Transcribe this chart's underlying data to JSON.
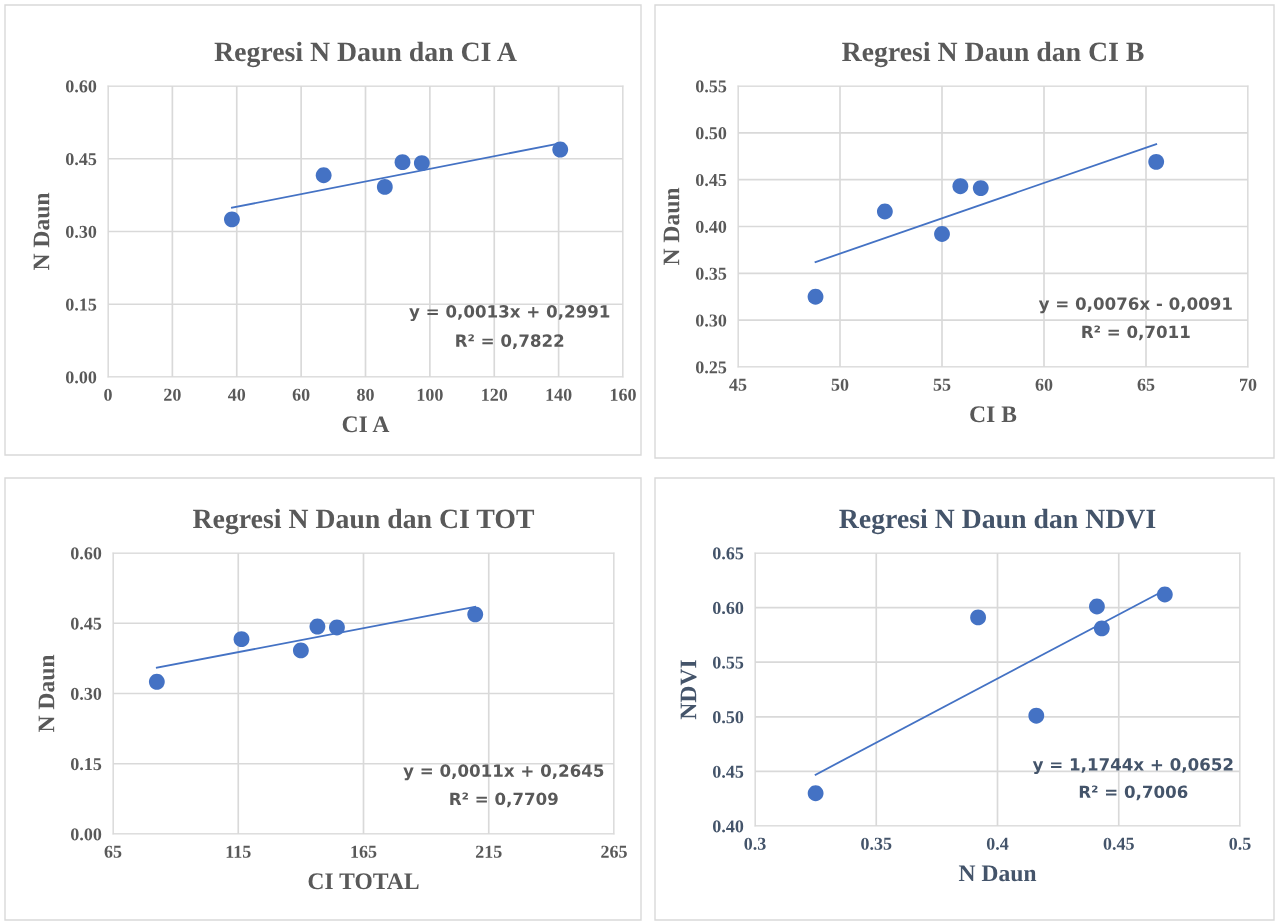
{
  "chart_data": [
    {
      "type": "scatter",
      "title": "Regresi N Daun dan CI A",
      "xlabel": "CI A",
      "ylabel": "N Daun",
      "grid": true,
      "xlim": [
        0,
        160
      ],
      "xticks": [
        0,
        20,
        40,
        60,
        80,
        100,
        120,
        140,
        160
      ],
      "ylim": [
        0,
        0.6
      ],
      "yticks": [
        {
          "value": 0,
          "label": "0.00"
        },
        {
          "value": 0.15,
          "label": "0.15"
        },
        {
          "value": 0.3,
          "label": "0.30"
        },
        {
          "value": 0.45,
          "label": "0.45"
        },
        {
          "value": 0.6,
          "label": "0.60"
        }
      ],
      "series": [
        {
          "marker": "circle",
          "color": "#4472c4",
          "x": [
            38.5,
            67,
            86,
            91.5,
            97.5,
            140.5
          ],
          "values": [
            0.325,
            0.416,
            0.392,
            0.443,
            0.441,
            0.469
          ]
        },
        {
          "type": "line",
          "marker": "none",
          "color": "#4472c4",
          "x": [
            38.5,
            140.5
          ],
          "values": [
            0.349,
            0.482
          ]
        }
      ],
      "annotations": [
        "y = 0,0013x + 0,2991",
        "R² = 0,7822"
      ]
    },
    {
      "type": "scatter",
      "title": "Regresi N Daun dan CI B",
      "xlabel": "CI B",
      "ylabel": "N Daun",
      "grid": true,
      "xlim": [
        45,
        70
      ],
      "xticks": [
        45,
        50,
        55,
        60,
        65,
        70
      ],
      "ylim": [
        0.25,
        0.55
      ],
      "yticks": [
        {
          "value": 0.25,
          "label": "0.25"
        },
        {
          "value": 0.3,
          "label": "0.30"
        },
        {
          "value": 0.35,
          "label": "0.35"
        },
        {
          "value": 0.4,
          "label": "0.40"
        },
        {
          "value": 0.45,
          "label": "0.45"
        },
        {
          "value": 0.5,
          "label": "0.50"
        },
        {
          "value": 0.55,
          "label": "0.55"
        }
      ],
      "series": [
        {
          "marker": "circle",
          "color": "#4472c4",
          "x": [
            48.8,
            52.2,
            55.0,
            55.9,
            56.9,
            65.5
          ],
          "values": [
            0.325,
            0.416,
            0.392,
            0.443,
            0.441,
            0.469
          ]
        },
        {
          "type": "line",
          "marker": "none",
          "color": "#4472c4",
          "x": [
            48.8,
            65.5
          ],
          "values": [
            0.362,
            0.488
          ]
        }
      ],
      "annotations": [
        "y = 0,0076x - 0,0091",
        "R² = 0,7011"
      ]
    },
    {
      "type": "scatter",
      "title": "Regresi N Daun dan CI TOT",
      "xlabel": "CI TOTAL",
      "ylabel": "N Daun",
      "grid": true,
      "xlim": [
        65,
        265
      ],
      "xticks": [
        65,
        115,
        165,
        215,
        265
      ],
      "ylim": [
        0,
        0.6
      ],
      "yticks": [
        {
          "value": 0,
          "label": "0.00"
        },
        {
          "value": 0.15,
          "label": "0.15"
        },
        {
          "value": 0.3,
          "label": "0.30"
        },
        {
          "value": 0.45,
          "label": "0.45"
        },
        {
          "value": 0.6,
          "label": "0.60"
        }
      ],
      "series": [
        {
          "marker": "circle",
          "color": "#4472c4",
          "x": [
            82.5,
            116.3,
            140,
            146.6,
            154.4,
            209.6
          ],
          "values": [
            0.325,
            0.416,
            0.392,
            0.443,
            0.441,
            0.469
          ]
        },
        {
          "type": "line",
          "marker": "none",
          "color": "#4472c4",
          "x": [
            82.5,
            209.6
          ],
          "values": [
            0.355,
            0.485
          ]
        }
      ],
      "annotations": [
        "y = 0,0011x + 0,2645",
        "R² = 0,7709"
      ]
    },
    {
      "type": "scatter",
      "title": "Regresi N Daun dan NDVI",
      "xlabel": "N Daun",
      "ylabel": "NDVI",
      "grid": true,
      "xlim": [
        0.3,
        0.5
      ],
      "xticks": [
        0.3,
        0.35,
        0.4,
        0.45,
        0.5
      ],
      "ylim": [
        0.4,
        0.65
      ],
      "yticks": [
        {
          "value": 0.4,
          "label": "0.40"
        },
        {
          "value": 0.45,
          "label": "0.45"
        },
        {
          "value": 0.5,
          "label": "0.50"
        },
        {
          "value": 0.55,
          "label": "0.55"
        },
        {
          "value": 0.6,
          "label": "0.60"
        },
        {
          "value": 0.65,
          "label": "0.65"
        }
      ],
      "series": [
        {
          "marker": "circle",
          "color": "#4472c4",
          "x": [
            0.325,
            0.392,
            0.416,
            0.441,
            0.443,
            0.469
          ],
          "values": [
            0.43,
            0.591,
            0.501,
            0.601,
            0.581,
            0.612
          ]
        },
        {
          "type": "line",
          "marker": "none",
          "color": "#4472c4",
          "x": [
            0.325,
            0.469
          ],
          "values": [
            0.447,
            0.616
          ]
        }
      ],
      "annotations": [
        "y = 1,1744x + 0,0652",
        "R² = 0,7006"
      ]
    }
  ]
}
